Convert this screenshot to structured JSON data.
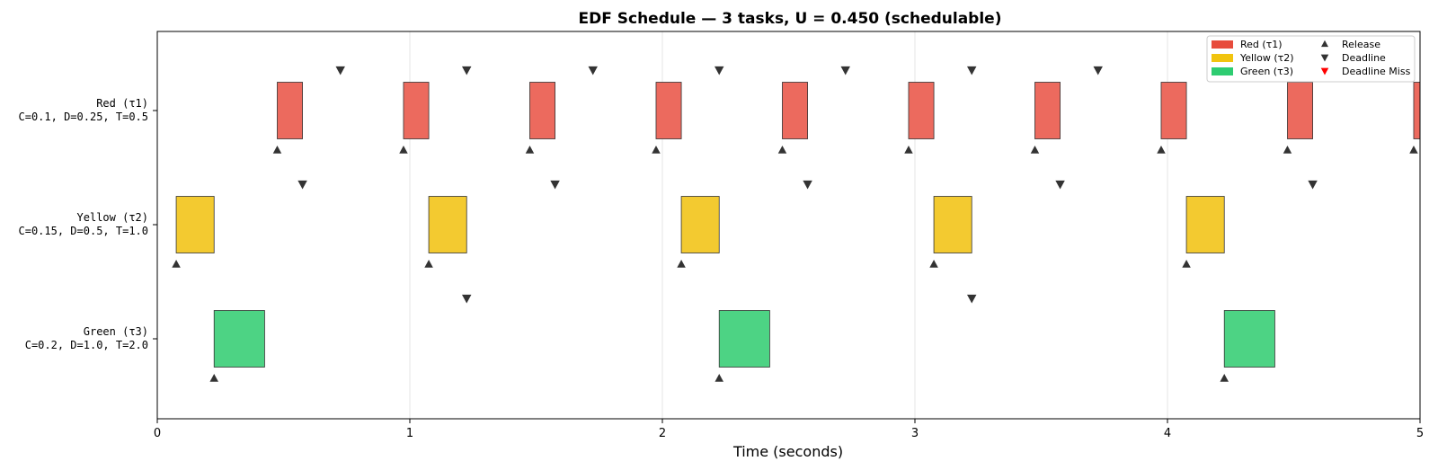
{
  "chart_data": {
    "type": "gantt",
    "title": "EDF Schedule — 3 tasks, U = 0.450 (schedulable)",
    "xlabel": "Time (seconds)",
    "ylabel": "",
    "xlim": [
      0,
      5
    ],
    "xticks": [
      0,
      1,
      2,
      3,
      4,
      5
    ],
    "grid": "vertical",
    "legend_position": "top-right",
    "tasks": [
      {
        "name_line": "Red (τ1)",
        "param_line": "C=0.1, D=0.25, T=0.5",
        "legend_label": "Red (τ1)",
        "color": "#e74c3c",
        "fill": "#ec6a5e",
        "releases": [
          0.475,
          0.975,
          1.475,
          1.975,
          2.475,
          2.975,
          3.475,
          3.975,
          4.475,
          4.975
        ],
        "deadlines": [
          0.725,
          1.225,
          1.725,
          2.225,
          2.725,
          3.225,
          3.725
        ],
        "executions": [
          {
            "start": 0.475,
            "end": 0.575
          },
          {
            "start": 0.975,
            "end": 1.075
          },
          {
            "start": 1.475,
            "end": 1.575
          },
          {
            "start": 1.975,
            "end": 2.075
          },
          {
            "start": 2.475,
            "end": 2.575
          },
          {
            "start": 2.975,
            "end": 3.075
          },
          {
            "start": 3.475,
            "end": 3.575
          },
          {
            "start": 3.975,
            "end": 4.075
          },
          {
            "start": 4.475,
            "end": 4.575
          },
          {
            "start": 4.975,
            "end": 5.0
          }
        ]
      },
      {
        "name_line": "Yellow (τ2)",
        "param_line": "C=0.15, D=0.5, T=1.0",
        "legend_label": "Yellow (τ2)",
        "color": "#f1c40f",
        "fill": "#f3ca30",
        "releases": [
          0.075,
          1.075,
          2.075,
          3.075,
          4.075
        ],
        "deadlines": [
          0.575,
          1.575,
          2.575,
          3.575,
          4.575
        ],
        "executions": [
          {
            "start": 0.075,
            "end": 0.225
          },
          {
            "start": 1.075,
            "end": 1.225
          },
          {
            "start": 2.075,
            "end": 2.225
          },
          {
            "start": 3.075,
            "end": 3.225
          },
          {
            "start": 4.075,
            "end": 4.225
          }
        ]
      },
      {
        "name_line": "Green (τ3)",
        "param_line": "C=0.2, D=1.0, T=2.0",
        "legend_label": "Green (τ3)",
        "color": "#2ecc71",
        "fill": "#4dd384",
        "releases": [
          0.225,
          2.225,
          4.225
        ],
        "deadlines": [
          1.225,
          3.225
        ],
        "executions": [
          {
            "start": 0.225,
            "end": 0.425
          },
          {
            "start": 2.225,
            "end": 2.425
          },
          {
            "start": 4.225,
            "end": 4.425
          }
        ]
      }
    ],
    "markers": {
      "release_label": "Release",
      "deadline_label": "Deadline",
      "miss_label": "Deadline Miss",
      "marker_color": "#333333",
      "miss_color": "#ff0000"
    },
    "misses": []
  }
}
